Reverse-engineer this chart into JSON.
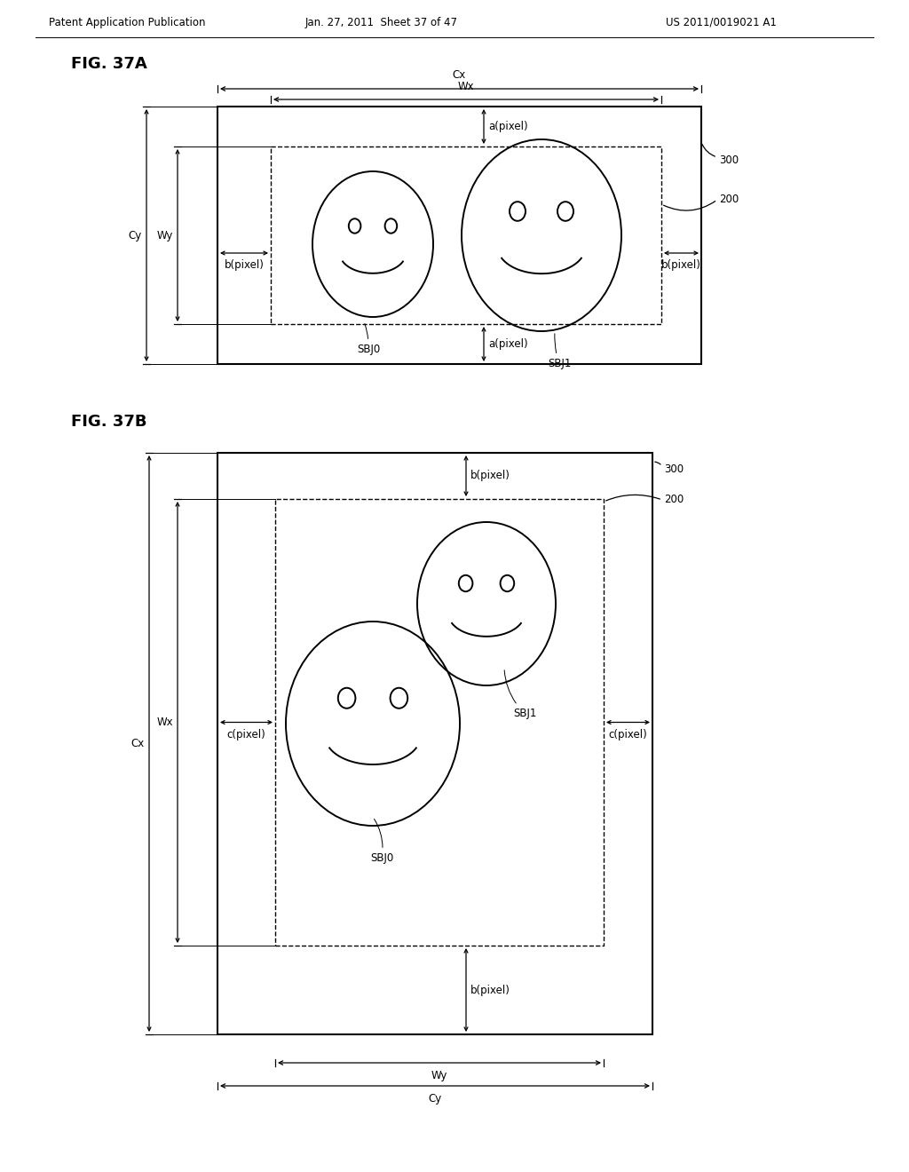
{
  "header_left": "Patent Application Publication",
  "header_mid": "Jan. 27, 2011  Sheet 37 of 47",
  "header_right": "US 2011/0019021 A1",
  "fig_a_title": "FIG. 37A",
  "fig_b_title": "FIG. 37B",
  "bg_color": "#ffffff",
  "line_color": "#000000",
  "label_fontsize": 8.5,
  "header_fontsize": 8.5,
  "title_fontsize": 13
}
